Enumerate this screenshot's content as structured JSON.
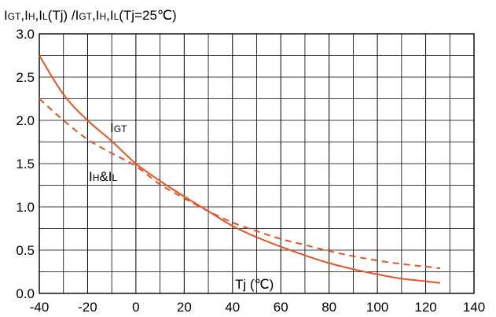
{
  "chart_data": {
    "type": "line",
    "title_parts": [
      {
        "text": "I",
        "sub": false
      },
      {
        "text": "GT",
        "sub": true
      },
      {
        "text": ",I",
        "sub": false
      },
      {
        "text": "H",
        "sub": true
      },
      {
        "text": ",I",
        "sub": false
      },
      {
        "text": "L",
        "sub": true
      },
      {
        "text": "(Tj) /I",
        "sub": false
      },
      {
        "text": "GT",
        "sub": true
      },
      {
        "text": ",I",
        "sub": false
      },
      {
        "text": "H",
        "sub": true
      },
      {
        "text": ",I",
        "sub": false
      },
      {
        "text": "L",
        "sub": true
      },
      {
        "text": "(Tj=25℃)",
        "sub": false
      }
    ],
    "xlabel": "Tj (℃)",
    "xlim": [
      -40,
      140
    ],
    "ylim": [
      0,
      3
    ],
    "x_ticks": [
      "-40",
      "-20",
      "0",
      "20",
      "40",
      "60",
      "80",
      "100",
      "120",
      "140"
    ],
    "y_ticks": [
      "0.0",
      "0.5",
      "1.0",
      "1.5",
      "2.0",
      "2.5",
      "3.0"
    ],
    "grid": true,
    "accent_color": "#e8531f",
    "series": [
      {
        "name": "IGT",
        "label_parts": [
          {
            "text": "I",
            "sub": false
          },
          {
            "text": "GT",
            "sub": true
          }
        ],
        "style": "solid",
        "x": [
          -40,
          -30,
          -20,
          -10,
          0,
          10,
          20,
          30,
          40,
          50,
          60,
          70,
          80,
          90,
          100,
          110,
          120,
          126
        ],
        "y": [
          2.75,
          2.3,
          2.0,
          1.76,
          1.5,
          1.3,
          1.12,
          0.95,
          0.78,
          0.65,
          0.54,
          0.44,
          0.35,
          0.28,
          0.22,
          0.17,
          0.14,
          0.12
        ]
      },
      {
        "name": "IH&IL",
        "label_parts": [
          {
            "text": "I",
            "sub": false
          },
          {
            "text": "H",
            "sub": true
          },
          {
            "text": "&I",
            "sub": false
          },
          {
            "text": "L",
            "sub": true
          }
        ],
        "style": "dashed",
        "x": [
          -40,
          -30,
          -20,
          -10,
          0,
          10,
          20,
          30,
          40,
          50,
          60,
          70,
          80,
          90,
          100,
          110,
          120,
          126
        ],
        "y": [
          2.25,
          2.0,
          1.78,
          1.62,
          1.47,
          1.26,
          1.1,
          0.95,
          0.82,
          0.72,
          0.63,
          0.56,
          0.49,
          0.43,
          0.38,
          0.34,
          0.31,
          0.29
        ]
      }
    ]
  }
}
